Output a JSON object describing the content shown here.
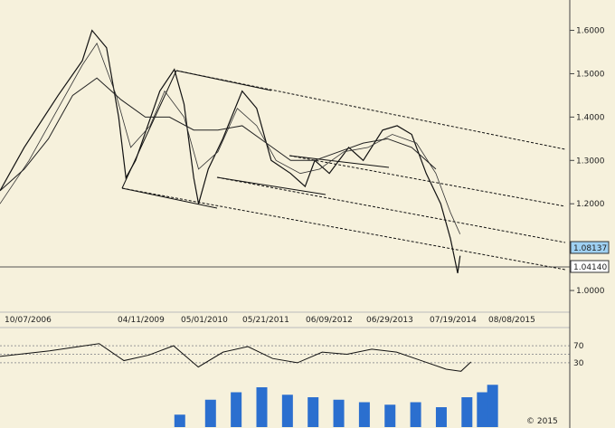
{
  "chart_data": {
    "type": "line",
    "title": "",
    "xlabel": "",
    "ylabel": "",
    "ylim": [
      0.95,
      1.67
    ],
    "y_ticks": [
      "1.0000",
      "1.1000",
      "1.2000",
      "1.3000",
      "1.4000",
      "1.5000",
      "1.6000"
    ],
    "x_ticks": [
      "10/07/2006",
      "04/11/2009",
      "05/01/2010",
      "05/21/2011",
      "06/09/2012",
      "06/29/2013",
      "07/19/2014",
      "08/08/2015"
    ],
    "price_labels": [
      "1.08137",
      "1.04140"
    ],
    "series": [
      {
        "values_t_y": [
          [
            0,
            1.23
          ],
          [
            0.05,
            1.33
          ],
          [
            0.12,
            1.45
          ],
          [
            0.17,
            1.53
          ],
          [
            0.19,
            1.6
          ],
          [
            0.22,
            1.56
          ],
          [
            0.245,
            1.4
          ],
          [
            0.26,
            1.26
          ],
          [
            0.28,
            1.3
          ],
          [
            0.33,
            1.46
          ],
          [
            0.36,
            1.51
          ],
          [
            0.38,
            1.43
          ],
          [
            0.4,
            1.26
          ],
          [
            0.41,
            1.2
          ],
          [
            0.43,
            1.28
          ],
          [
            0.46,
            1.35
          ],
          [
            0.5,
            1.46
          ],
          [
            0.53,
            1.42
          ],
          [
            0.56,
            1.3
          ],
          [
            0.6,
            1.27
          ],
          [
            0.63,
            1.24
          ],
          [
            0.65,
            1.3
          ],
          [
            0.68,
            1.27
          ],
          [
            0.72,
            1.33
          ],
          [
            0.75,
            1.3
          ],
          [
            0.79,
            1.37
          ],
          [
            0.82,
            1.38
          ],
          [
            0.85,
            1.36
          ],
          [
            0.88,
            1.27
          ],
          [
            0.91,
            1.2
          ],
          [
            0.93,
            1.12
          ],
          [
            0.945,
            1.04
          ],
          [
            0.95,
            1.08
          ]
        ]
      },
      {
        "values_t_y": [
          [
            0,
            1.2
          ],
          [
            0.06,
            1.3
          ],
          [
            0.13,
            1.44
          ],
          [
            0.17,
            1.52
          ],
          [
            0.2,
            1.57
          ],
          [
            0.24,
            1.45
          ],
          [
            0.27,
            1.33
          ],
          [
            0.31,
            1.38
          ],
          [
            0.34,
            1.46
          ],
          [
            0.38,
            1.4
          ],
          [
            0.41,
            1.28
          ],
          [
            0.45,
            1.32
          ],
          [
            0.49,
            1.42
          ],
          [
            0.53,
            1.38
          ],
          [
            0.57,
            1.3
          ],
          [
            0.62,
            1.27
          ],
          [
            0.66,
            1.28
          ],
          [
            0.71,
            1.32
          ],
          [
            0.76,
            1.33
          ],
          [
            0.81,
            1.36
          ],
          [
            0.86,
            1.34
          ],
          [
            0.9,
            1.27
          ],
          [
            0.93,
            1.18
          ],
          [
            0.95,
            1.13
          ]
        ]
      },
      {
        "values_t_y": [
          [
            0,
            1.23
          ],
          [
            0.05,
            1.28
          ],
          [
            0.1,
            1.35
          ],
          [
            0.15,
            1.45
          ],
          [
            0.2,
            1.49
          ],
          [
            0.25,
            1.44
          ],
          [
            0.3,
            1.4
          ],
          [
            0.35,
            1.4
          ],
          [
            0.4,
            1.37
          ],
          [
            0.45,
            1.37
          ],
          [
            0.5,
            1.38
          ],
          [
            0.55,
            1.34
          ],
          [
            0.6,
            1.3
          ],
          [
            0.65,
            1.3
          ],
          [
            0.7,
            1.32
          ],
          [
            0.75,
            1.34
          ],
          [
            0.8,
            1.35
          ],
          [
            0.85,
            1.33
          ],
          [
            0.88,
            1.3
          ],
          [
            0.9,
            1.28
          ]
        ]
      }
    ],
    "oscillator": {
      "ticks": [
        "70",
        "30"
      ],
      "values_t_y": [
        [
          0,
          45
        ],
        [
          0.1,
          58
        ],
        [
          0.2,
          75
        ],
        [
          0.25,
          35
        ],
        [
          0.3,
          48
        ],
        [
          0.35,
          70
        ],
        [
          0.4,
          20
        ],
        [
          0.45,
          55
        ],
        [
          0.5,
          68
        ],
        [
          0.55,
          40
        ],
        [
          0.6,
          30
        ],
        [
          0.65,
          55
        ],
        [
          0.7,
          50
        ],
        [
          0.75,
          62
        ],
        [
          0.8,
          55
        ],
        [
          0.85,
          35
        ],
        [
          0.9,
          15
        ],
        [
          0.93,
          10
        ],
        [
          0.95,
          32
        ]
      ]
    },
    "volume": {
      "values_t_y": [
        [
          0.34,
          25
        ],
        [
          0.4,
          55
        ],
        [
          0.45,
          70
        ],
        [
          0.5,
          80
        ],
        [
          0.55,
          65
        ],
        [
          0.6,
          60
        ],
        [
          0.65,
          55
        ],
        [
          0.7,
          50
        ],
        [
          0.75,
          45
        ],
        [
          0.8,
          50
        ],
        [
          0.85,
          40
        ],
        [
          0.9,
          60
        ],
        [
          0.93,
          70
        ],
        [
          0.95,
          85
        ]
      ]
    }
  },
  "watermark": "© 2015"
}
